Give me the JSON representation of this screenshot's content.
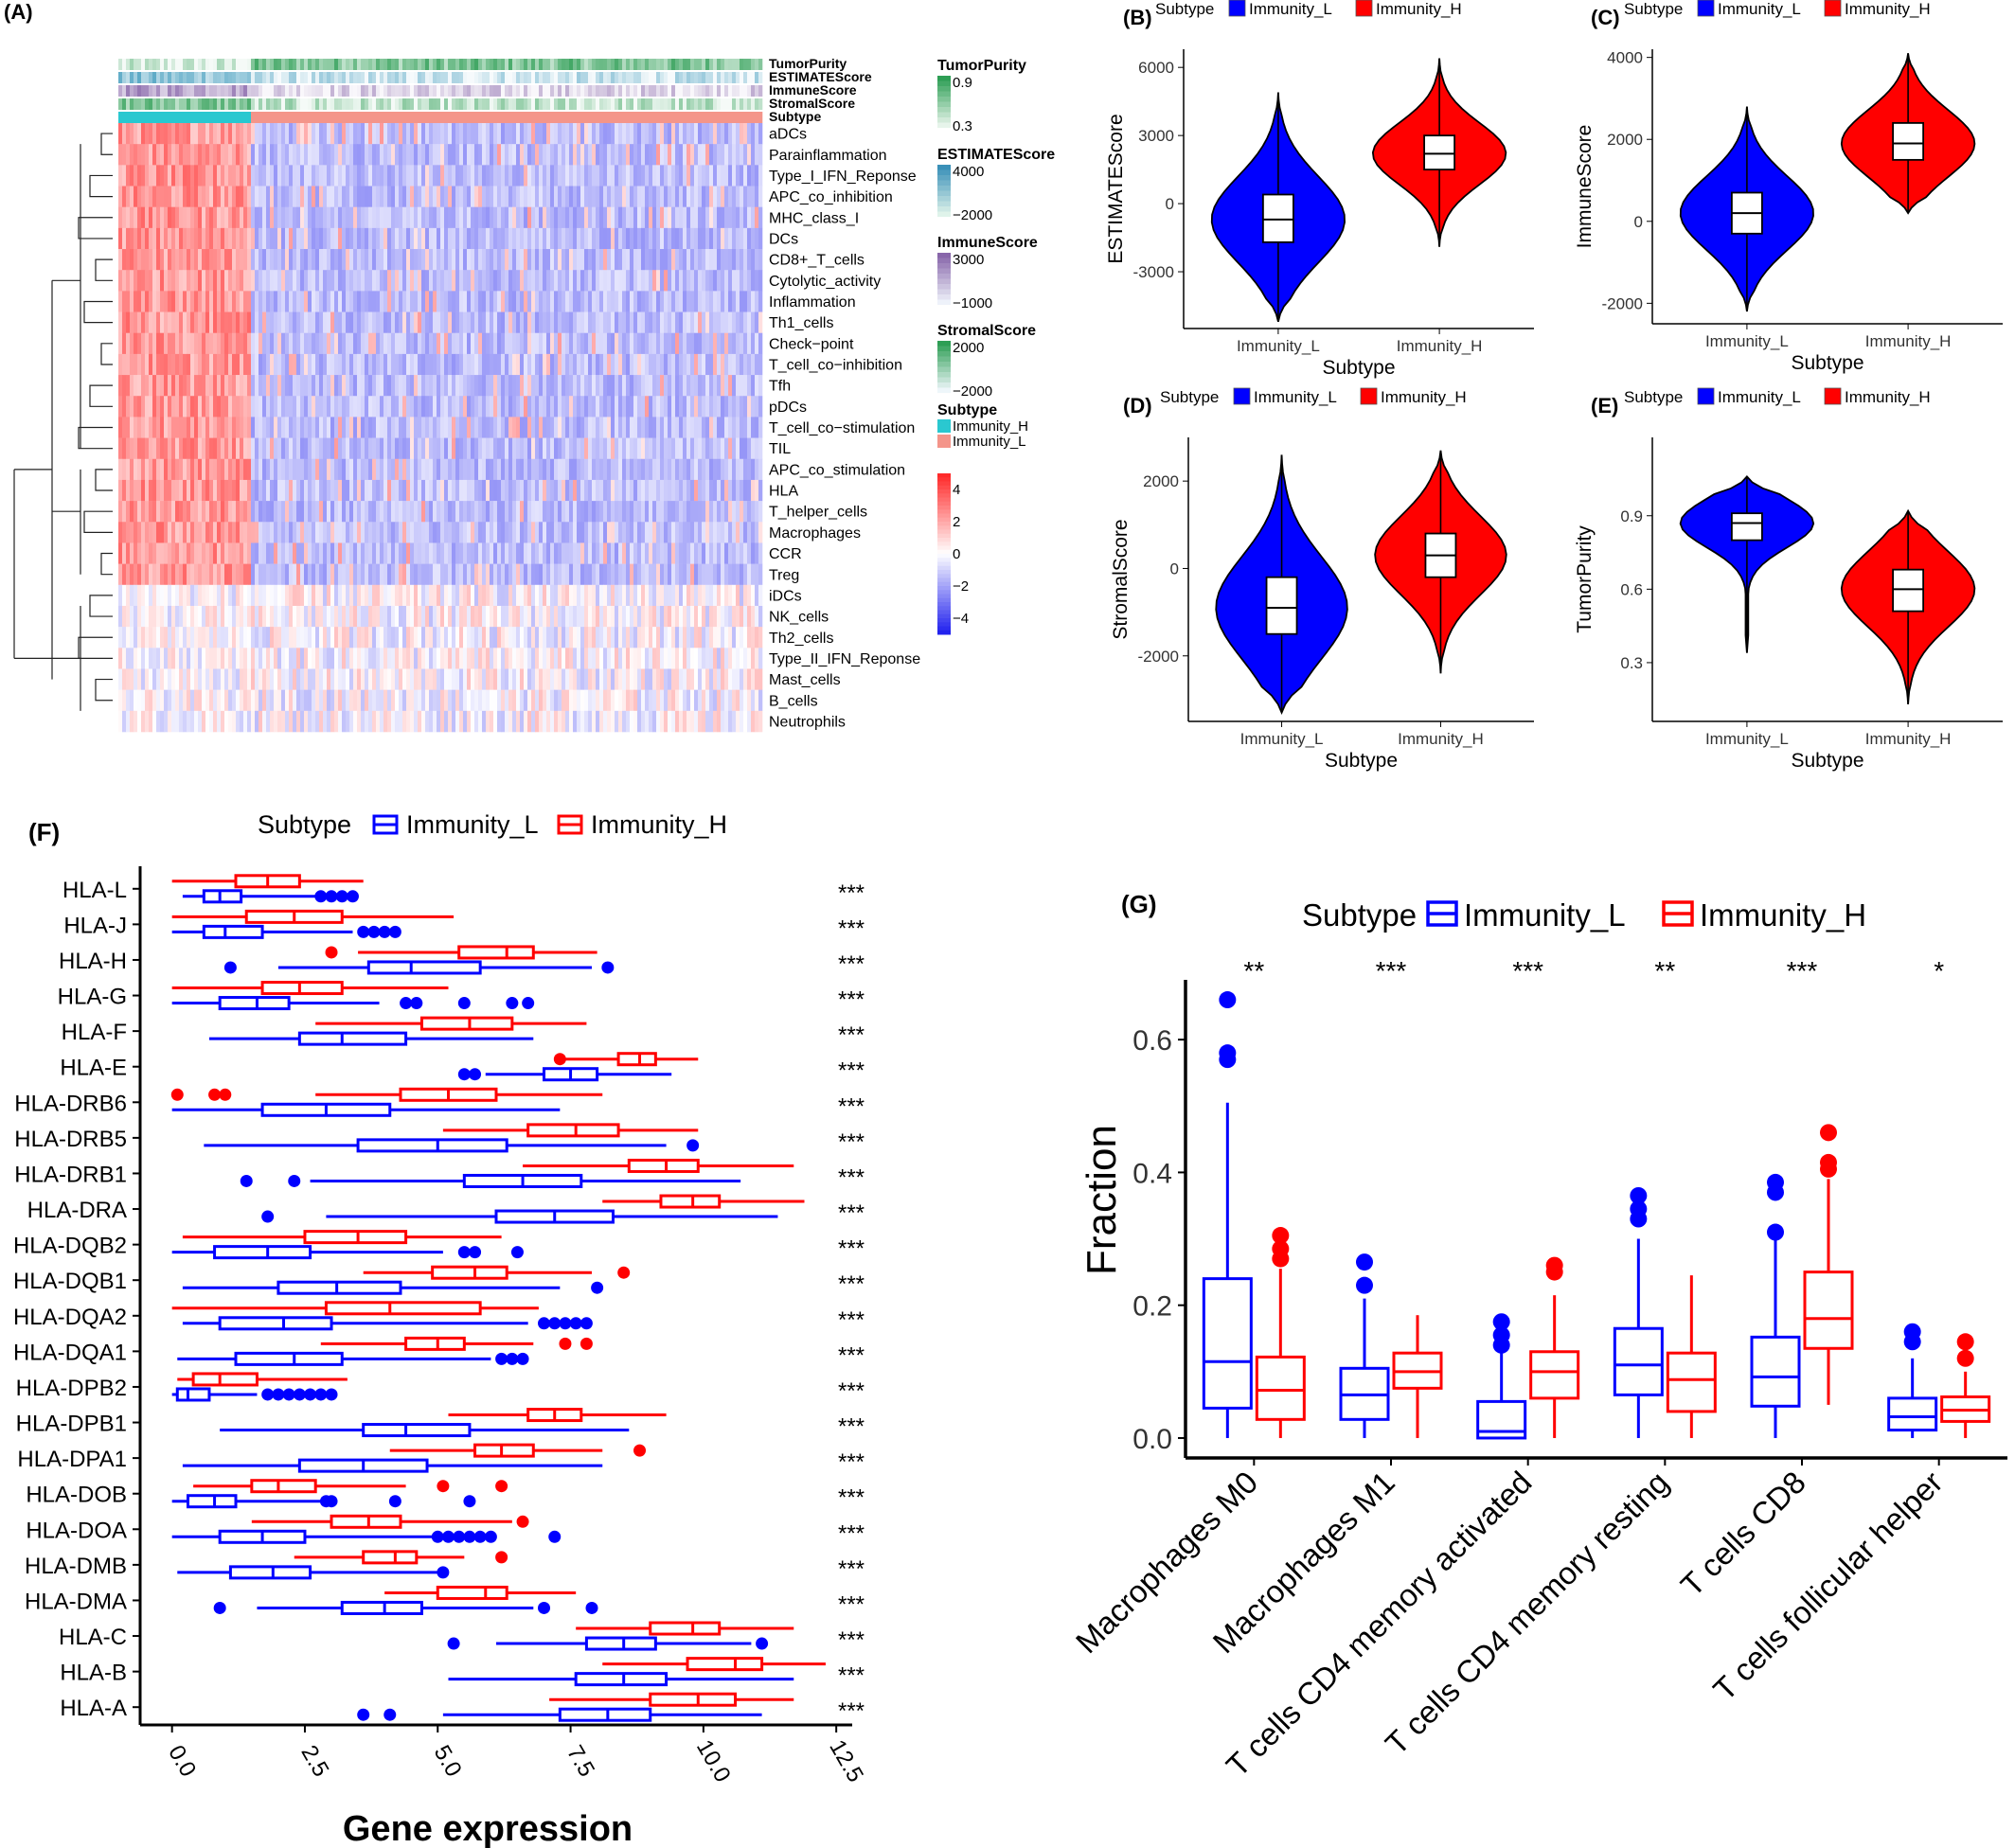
{
  "colors": {
    "low": "#0000ff",
    "high": "#ff0000",
    "heat_high": "#ff2a2a",
    "heat_low": "#2222ee",
    "teal": "#2ac8d0",
    "salmon": "#f4958a",
    "green": "#2e9e55",
    "purple": "#8866aa"
  },
  "chart_data": [
    {
      "panel": "(A)",
      "type": "heatmap",
      "annotation_tracks": [
        "TumorPurity",
        "ESTIMATEScore",
        "ImmuneScore",
        "StromalScore",
        "Subtype"
      ],
      "rows": [
        "aDCs",
        "Parainflammation",
        "Type_I_IFN_Reponse",
        "APC_co_inhibition",
        "MHC_class_I",
        "DCs",
        "CD8+_T_cells",
        "Cytolytic_activity",
        "Inflammation",
        "Th1_cells",
        "Check−point",
        "T_cell_co−inhibition",
        "Tfh",
        "pDCs",
        "T_cell_co−stimulation",
        "TIL",
        "APC_co_stimulation",
        "HLA",
        "T_helper_cells",
        "Macrophages",
        "CCR",
        "Treg",
        "iDCs",
        "NK_cells",
        "Th2_cells",
        "Type_II_IFN_Reponse",
        "Mast_cells",
        "B_cells",
        "Neutrophils"
      ],
      "legends": [
        {
          "title": "TumorPurity",
          "ticks": [
            "0.9",
            "0.3"
          ]
        },
        {
          "title": "ESTIMATEScore",
          "ticks": [
            "4000",
            "−2000"
          ]
        },
        {
          "title": "ImmuneScore",
          "ticks": [
            "3000",
            "−1000"
          ]
        },
        {
          "title": "StromalScore",
          "ticks": [
            "2000",
            "−2000"
          ]
        },
        {
          "title": "Subtype",
          "items": [
            "Immunity_H",
            "Immunity_L"
          ]
        }
      ],
      "scale_ticks": [
        "4",
        "2",
        "0",
        "−2",
        "−4"
      ],
      "scale_range": [
        -5,
        5
      ]
    },
    {
      "panel": "(B)",
      "type": "violin",
      "legend_title": "Subtype",
      "legend": [
        "Immunity_L",
        "Immunity_H"
      ],
      "categories": [
        "Immunity_L",
        "Immunity_H"
      ],
      "xlabel": "Subtype",
      "ylabel": "ESTIMATEScore",
      "yticks": [
        6000,
        3000,
        0,
        -3000
      ],
      "ylim": [
        -5500,
        6800
      ],
      "groups": [
        {
          "name": "Immunity_L",
          "min": -5200,
          "q1": -1700,
          "median": -700,
          "q3": 400,
          "max": 4900
        },
        {
          "name": "Immunity_H",
          "min": -1900,
          "q1": 1500,
          "median": 2200,
          "q3": 3000,
          "max": 6400
        }
      ]
    },
    {
      "panel": "(C)",
      "type": "violin",
      "legend_title": "Subtype",
      "legend": [
        "Immunity_L",
        "Immunity_H"
      ],
      "categories": [
        "Immunity_L",
        "Immunity_H"
      ],
      "xlabel": "Subtype",
      "ylabel": "ImmuneScore",
      "yticks": [
        4000,
        2000,
        0,
        -2000
      ],
      "ylim": [
        -2500,
        4200
      ],
      "groups": [
        {
          "name": "Immunity_L",
          "min": -2200,
          "q1": -300,
          "median": 200,
          "q3": 700,
          "max": 2800
        },
        {
          "name": "Immunity_H",
          "min": 200,
          "q1": 1500,
          "median": 1900,
          "q3": 2400,
          "max": 4100
        }
      ]
    },
    {
      "panel": "(D)",
      "type": "violin",
      "legend_title": "Subtype",
      "legend": [
        "Immunity_L",
        "Immunity_H"
      ],
      "categories": [
        "Immunity_L",
        "Immunity_H"
      ],
      "xlabel": "Subtype",
      "ylabel": "StromalScore",
      "yticks": [
        2000,
        0,
        -2000
      ],
      "ylim": [
        -3500,
        3000
      ],
      "groups": [
        {
          "name": "Immunity_L",
          "min": -3300,
          "q1": -1500,
          "median": -900,
          "q3": -200,
          "max": 2600
        },
        {
          "name": "Immunity_H",
          "min": -2400,
          "q1": -200,
          "median": 300,
          "q3": 800,
          "max": 2700
        }
      ]
    },
    {
      "panel": "(E)",
      "type": "violin",
      "legend_title": "Subtype",
      "legend": [
        "Immunity_L",
        "Immunity_H"
      ],
      "categories": [
        "Immunity_L",
        "Immunity_H"
      ],
      "xlabel": "Subtype",
      "ylabel": "TumorPurity",
      "yticks": [
        0.9,
        0.6,
        0.3
      ],
      "ylim": [
        0.06,
        1.22
      ],
      "groups": [
        {
          "name": "Immunity_L",
          "min": 0.34,
          "q1": 0.8,
          "median": 0.87,
          "q3": 0.91,
          "max": 1.06
        },
        {
          "name": "Immunity_H",
          "min": 0.13,
          "q1": 0.51,
          "median": 0.6,
          "q3": 0.68,
          "max": 0.92
        }
      ]
    },
    {
      "panel": "(F)",
      "type": "boxplot_horizontal",
      "legend_title": "Subtype",
      "legend": [
        "Immunity_L",
        "Immunity_H"
      ],
      "xlabel": "Gene expression",
      "xticks": [
        "0.0",
        "2.5",
        "5.0",
        "7.5",
        "10.0",
        "12.5"
      ],
      "xlim": [
        -0.6,
        12.8
      ],
      "rows": [
        {
          "gene": "HLA-L",
          "sig": "***",
          "L": [
            0.2,
            0.6,
            0.9,
            1.3,
            2.7
          ],
          "L_out": [
            2.8,
            3.0,
            3.2,
            3.4
          ],
          "H": [
            0.0,
            1.2,
            1.8,
            2.4,
            3.6
          ],
          "H_out": []
        },
        {
          "gene": "HLA-J",
          "sig": "***",
          "L": [
            0.0,
            0.6,
            1.0,
            1.7,
            3.4
          ],
          "L_out": [
            3.6,
            3.8,
            4.0,
            4.2
          ],
          "H": [
            0.0,
            1.4,
            2.3,
            3.2,
            5.3
          ],
          "H_out": []
        },
        {
          "gene": "HLA-H",
          "sig": "***",
          "L": [
            2.0,
            3.7,
            4.5,
            5.8,
            7.9
          ],
          "L_out": [
            1.1,
            8.2
          ],
          "H": [
            3.5,
            5.4,
            6.3,
            6.8,
            8.0
          ],
          "H_out": [
            3.0
          ]
        },
        {
          "gene": "HLA-G",
          "sig": "***",
          "L": [
            0.0,
            0.9,
            1.6,
            2.2,
            3.9
          ],
          "L_out": [
            4.4,
            4.6,
            5.5,
            6.4,
            6.7
          ],
          "H": [
            0.0,
            1.7,
            2.4,
            3.2,
            5.2
          ],
          "H_out": []
        },
        {
          "gene": "HLA-F",
          "sig": "***",
          "L": [
            0.7,
            2.4,
            3.2,
            4.4,
            6.8
          ],
          "L_out": [],
          "H": [
            2.7,
            4.7,
            5.6,
            6.4,
            7.8
          ],
          "H_out": []
        },
        {
          "gene": "HLA-E",
          "sig": "***",
          "L": [
            5.9,
            7.0,
            7.5,
            8.0,
            9.4
          ],
          "L_out": [
            5.5,
            5.7
          ],
          "H": [
            7.4,
            8.4,
            8.8,
            9.1,
            9.9
          ],
          "H_out": [
            7.3
          ]
        },
        {
          "gene": "HLA-DRB6",
          "sig": "***",
          "L": [
            0.0,
            1.7,
            2.9,
            4.1,
            7.3
          ],
          "L_out": [],
          "H": [
            2.7,
            4.3,
            5.2,
            6.1,
            8.1
          ],
          "H_out": [
            0.1,
            0.8,
            1.0
          ]
        },
        {
          "gene": "HLA-DRB5",
          "sig": "***",
          "L": [
            0.6,
            3.5,
            5.0,
            6.3,
            9.3
          ],
          "L_out": [
            9.8
          ],
          "H": [
            5.1,
            6.7,
            7.6,
            8.4,
            9.9
          ],
          "H_out": []
        },
        {
          "gene": "HLA-DRB1",
          "sig": "***",
          "L": [
            2.6,
            5.5,
            6.6,
            7.7,
            10.7
          ],
          "L_out": [
            1.4,
            2.3
          ],
          "H": [
            6.6,
            8.6,
            9.3,
            9.9,
            11.7
          ],
          "H_out": []
        },
        {
          "gene": "HLA-DRA",
          "sig": "***",
          "L": [
            2.9,
            6.1,
            7.2,
            8.3,
            11.4
          ],
          "L_out": [
            1.8
          ],
          "H": [
            8.1,
            9.2,
            9.8,
            10.3,
            11.9
          ],
          "H_out": []
        },
        {
          "gene": "HLA-DQB2",
          "sig": "***",
          "L": [
            0.0,
            0.8,
            1.8,
            2.6,
            5.1
          ],
          "L_out": [
            5.5,
            5.7,
            6.5
          ],
          "H": [
            0.2,
            2.5,
            3.5,
            4.4,
            6.2
          ],
          "H_out": []
        },
        {
          "gene": "HLA-DQB1",
          "sig": "***",
          "L": [
            0.2,
            2.0,
            3.1,
            4.3,
            7.3
          ],
          "L_out": [
            8.0
          ],
          "H": [
            3.6,
            4.9,
            5.7,
            6.3,
            7.9
          ],
          "H_out": [
            8.5
          ]
        },
        {
          "gene": "HLA-DQA2",
          "sig": "***",
          "L": [
            0.2,
            0.9,
            2.1,
            3.0,
            6.7
          ],
          "L_out": [
            7.0,
            7.2,
            7.4,
            7.6,
            7.8
          ],
          "H": [
            0.0,
            2.9,
            4.1,
            5.8,
            6.9
          ],
          "H_out": []
        },
        {
          "gene": "HLA-DQA1",
          "sig": "***",
          "L": [
            0.1,
            1.2,
            2.3,
            3.2,
            6.0
          ],
          "L_out": [
            6.2,
            6.4,
            6.6
          ],
          "H": [
            2.8,
            4.4,
            5.0,
            5.5,
            6.8
          ],
          "H_out": [
            7.4,
            7.8
          ]
        },
        {
          "gene": "HLA-DPB2",
          "sig": "***",
          "L": [
            0.0,
            0.1,
            0.3,
            0.7,
            1.6
          ],
          "L_out": [
            1.8,
            2.0,
            2.2,
            2.4,
            2.6,
            2.8,
            3.0
          ],
          "H": [
            0.1,
            0.4,
            0.9,
            1.6,
            3.3
          ],
          "H_out": []
        },
        {
          "gene": "HLA-DPB1",
          "sig": "***",
          "L": [
            0.9,
            3.6,
            4.4,
            5.6,
            8.6
          ],
          "L_out": [],
          "H": [
            5.2,
            6.7,
            7.2,
            7.7,
            9.3
          ],
          "H_out": []
        },
        {
          "gene": "HLA-DPA1",
          "sig": "***",
          "L": [
            0.2,
            2.4,
            3.6,
            4.8,
            8.1
          ],
          "L_out": [],
          "H": [
            4.1,
            5.7,
            6.2,
            6.8,
            8.1
          ],
          "H_out": [
            8.8
          ]
        },
        {
          "gene": "HLA-DOB",
          "sig": "***",
          "L": [
            0.0,
            0.3,
            0.8,
            1.2,
            2.8
          ],
          "L_out": [
            2.9,
            3.0,
            4.2,
            5.6
          ],
          "H": [
            0.4,
            1.5,
            2.0,
            2.7,
            4.4
          ],
          "H_out": [
            5.1,
            6.2
          ]
        },
        {
          "gene": "HLA-DOA",
          "sig": "***",
          "L": [
            0.0,
            0.9,
            1.7,
            2.5,
            4.9
          ],
          "L_out": [
            5.0,
            5.2,
            5.4,
            5.6,
            5.8,
            6.0,
            7.2
          ],
          "H": [
            1.5,
            3.0,
            3.7,
            4.3,
            6.4
          ],
          "H_out": [
            6.6
          ]
        },
        {
          "gene": "HLA-DMB",
          "sig": "***",
          "L": [
            0.1,
            1.1,
            1.9,
            2.6,
            5.0
          ],
          "L_out": [
            5.1
          ],
          "H": [
            2.3,
            3.6,
            4.2,
            4.6,
            5.5
          ],
          "H_out": [
            6.2
          ]
        },
        {
          "gene": "HLA-DMA",
          "sig": "***",
          "L": [
            1.6,
            3.2,
            4.0,
            4.7,
            6.8
          ],
          "L_out": [
            0.9,
            7.0,
            7.9
          ],
          "H": [
            4.0,
            5.0,
            5.9,
            6.3,
            7.6
          ],
          "H_out": []
        },
        {
          "gene": "HLA-C",
          "sig": "***",
          "L": [
            6.1,
            7.8,
            8.5,
            9.1,
            10.9
          ],
          "L_out": [
            5.3,
            11.1
          ],
          "H": [
            7.6,
            9.0,
            9.8,
            10.3,
            11.7
          ],
          "H_out": []
        },
        {
          "gene": "HLA-B",
          "sig": "***",
          "L": [
            5.2,
            7.6,
            8.5,
            9.3,
            11.7
          ],
          "L_out": [],
          "H": [
            8.1,
            9.7,
            10.6,
            11.1,
            12.3
          ],
          "H_out": []
        },
        {
          "gene": "HLA-A",
          "sig": "***",
          "L": [
            5.1,
            7.3,
            8.2,
            9.0,
            11.1
          ],
          "L_out": [
            3.6,
            4.1
          ],
          "H": [
            7.1,
            9.0,
            9.9,
            10.6,
            11.7
          ],
          "H_out": []
        }
      ]
    },
    {
      "panel": "(G)",
      "type": "boxplot",
      "legend_title": "Subtype",
      "legend": [
        "Immunity_L",
        "Immunity_H"
      ],
      "ylabel": "Fraction",
      "yticks": [
        "0.0",
        "0.2",
        "0.4",
        "0.6"
      ],
      "ylim": [
        -0.03,
        0.69
      ],
      "categories": [
        "Macrophages M0",
        "Macrophages M1",
        "T cells CD4 memory activated",
        "T cells CD4 memory resting",
        "T cells CD8",
        "T cells follicular helper"
      ],
      "sig": [
        "**",
        "***",
        "***",
        "**",
        "***",
        "*"
      ],
      "L": [
        {
          "min": 0.0,
          "q1": 0.045,
          "median": 0.115,
          "q3": 0.24,
          "max": 0.505,
          "out": [
            0.57,
            0.58,
            0.66
          ]
        },
        {
          "min": 0.0,
          "q1": 0.028,
          "median": 0.065,
          "q3": 0.105,
          "max": 0.21,
          "out": [
            0.23,
            0.265
          ]
        },
        {
          "min": 0.0,
          "q1": 0.0,
          "median": 0.01,
          "q3": 0.055,
          "max": 0.13,
          "out": [
            0.14,
            0.155,
            0.175
          ]
        },
        {
          "min": 0.0,
          "q1": 0.065,
          "median": 0.11,
          "q3": 0.165,
          "max": 0.3,
          "out": [
            0.33,
            0.345,
            0.365
          ]
        },
        {
          "min": 0.0,
          "q1": 0.048,
          "median": 0.092,
          "q3": 0.152,
          "max": 0.3,
          "out": [
            0.31,
            0.37,
            0.385
          ]
        },
        {
          "min": 0.0,
          "q1": 0.012,
          "median": 0.032,
          "q3": 0.06,
          "max": 0.12,
          "out": [
            0.145,
            0.16
          ]
        }
      ],
      "H": [
        {
          "min": 0.0,
          "q1": 0.028,
          "median": 0.072,
          "q3": 0.122,
          "max": 0.255,
          "out": [
            0.27,
            0.285,
            0.305
          ]
        },
        {
          "min": 0.0,
          "q1": 0.075,
          "median": 0.1,
          "q3": 0.128,
          "max": 0.185,
          "out": []
        },
        {
          "min": 0.0,
          "q1": 0.06,
          "median": 0.1,
          "q3": 0.13,
          "max": 0.215,
          "out": [
            0.25,
            0.26
          ]
        },
        {
          "min": 0.0,
          "q1": 0.04,
          "median": 0.088,
          "q3": 0.128,
          "max": 0.245,
          "out": []
        },
        {
          "min": 0.05,
          "q1": 0.135,
          "median": 0.18,
          "q3": 0.25,
          "max": 0.39,
          "out": [
            0.405,
            0.415,
            0.46
          ]
        },
        {
          "min": 0.0,
          "q1": 0.025,
          "median": 0.042,
          "q3": 0.062,
          "max": 0.1,
          "out": [
            0.12,
            0.145
          ]
        }
      ]
    }
  ]
}
